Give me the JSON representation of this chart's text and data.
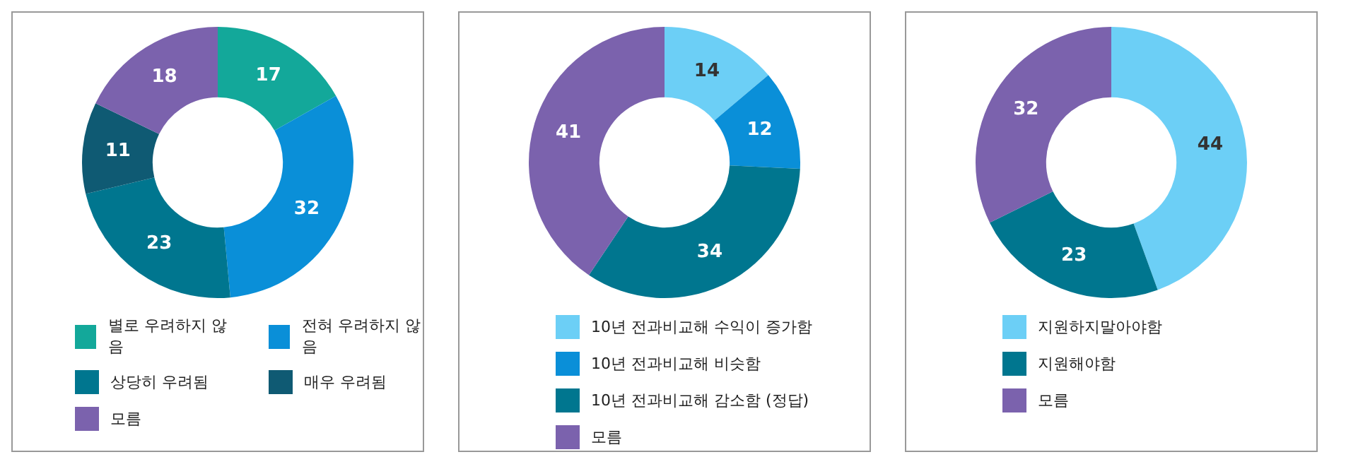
{
  "chart_data": [
    {
      "type": "donut",
      "categories": [
        "별로 우려하지 않음",
        "전혀 우려하지 않음",
        "상당히 우려됨",
        "매우 우려됨",
        "모름"
      ],
      "values": [
        17,
        32,
        23,
        11,
        18
      ],
      "colors": [
        "#13a89a",
        "#0a8fd8",
        "#00768f",
        "#0f5a73",
        "#7b62ad"
      ],
      "data_labels": true,
      "legend": "bottom"
    },
    {
      "type": "donut",
      "categories": [
        "10년 전과비교해 수익이 증가함",
        "10년 전과비교해 비슷함",
        "10년 전과비교해 감소함 (정답)",
        "모름"
      ],
      "values": [
        14,
        12,
        34,
        41
      ],
      "colors": [
        "#6ccff6",
        "#0a8fd8",
        "#00768f",
        "#7b62ad"
      ],
      "data_labels": true,
      "legend": "bottom"
    },
    {
      "type": "donut",
      "categories": [
        "지원하지말아야함",
        "지원해야함",
        "모름"
      ],
      "values": [
        44,
        23,
        32
      ],
      "colors": [
        "#6ccff6",
        "#00768f",
        "#7b62ad"
      ],
      "data_labels": true,
      "legend": "bottom"
    }
  ]
}
